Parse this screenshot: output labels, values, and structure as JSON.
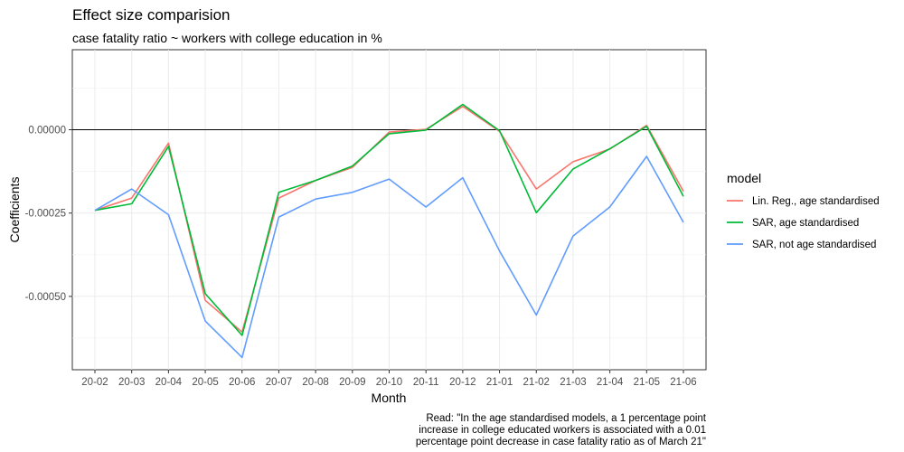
{
  "chart_data": {
    "type": "line",
    "title": "Effect size comparision",
    "subtitle": "case fatality ratio ~ workers with college education in %",
    "xlabel": "Month",
    "ylabel": "Coefficients",
    "x": [
      "20-02",
      "20-03",
      "20-04",
      "20-05",
      "20-06",
      "20-07",
      "20-08",
      "20-09",
      "20-10",
      "20-11",
      "20-12",
      "21-01",
      "21-02",
      "21-03",
      "21-04",
      "21-05",
      "21-06"
    ],
    "ylim": [
      -0.00072,
      0.00024
    ],
    "yticks": [
      0.0,
      -0.00025,
      -0.0005
    ],
    "ytick_labels": [
      "0.00000",
      "-0.00025",
      "-0.00050"
    ],
    "hline": 0,
    "grid": true,
    "legend": {
      "title": "model",
      "position": "right"
    },
    "series": [
      {
        "name": "Lin. Reg., age standardised",
        "color": "#F8766D",
        "values": [
          -0.000242,
          -0.000205,
          -4e-05,
          -0.000512,
          -0.000607,
          -0.000205,
          -0.000152,
          -0.000113,
          -7e-06,
          1e-06,
          7e-05,
          -5e-06,
          -0.000178,
          -9.6e-05,
          -5.8e-05,
          1.3e-05,
          -0.000185
        ]
      },
      {
        "name": "SAR, age standardised",
        "color": "#00BA38",
        "values": [
          -0.000242,
          -0.000222,
          -5e-05,
          -0.000492,
          -0.000617,
          -0.000188,
          -0.000152,
          -0.000109,
          -1.2e-05,
          -1e-06,
          7.6e-05,
          -3e-06,
          -0.000249,
          -0.000118,
          -5.7e-05,
          1e-05,
          -0.0002
        ]
      },
      {
        "name": "SAR, not age standardised",
        "color": "#619CFF",
        "values": [
          -0.000242,
          -0.000178,
          -0.000255,
          -0.000574,
          -0.000683,
          -0.000262,
          -0.000208,
          -0.000188,
          -0.000148,
          -0.000232,
          -0.000144,
          -0.000364,
          -0.000556,
          -0.000319,
          -0.000232,
          -8e-05,
          -0.000278
        ]
      }
    ],
    "caption": [
      "Read: \"In the age standardised models, a 1 percentage point",
      "increase in college educated workers is associated with a 0.01",
      "percentage point decrease in case fatality ratio as of March 21\""
    ]
  }
}
